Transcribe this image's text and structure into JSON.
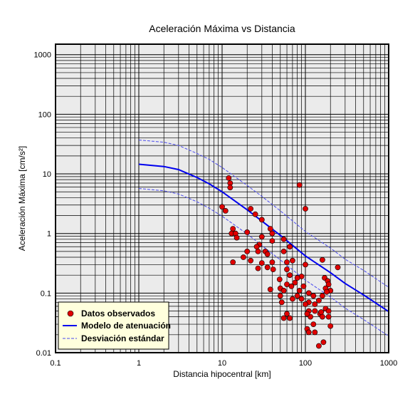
{
  "chart_data": {
    "type": "scatter",
    "title": "Aceleración Máxima vs Distancia",
    "xlabel": "Distancia hipocentral [km]",
    "ylabel": "Aceleración Máxima [cm/s²]",
    "xscale": "log",
    "yscale": "log",
    "xlim": [
      0.1,
      1000
    ],
    "ylim": [
      0.01,
      1500
    ],
    "x_ticks": [
      "0.1",
      "1",
      "10",
      "100",
      "1000"
    ],
    "y_ticks": [
      "0.01",
      "0.1",
      "1",
      "10",
      "100",
      "1000"
    ],
    "grid": true,
    "legend_position": "bottom-left",
    "colors": {
      "plot_bg": "#ebebeb",
      "observed": "#e00000",
      "model": "#0000ee",
      "stddev": "#4a4aee",
      "legend_bg": "#ffffdd"
    },
    "legend": [
      {
        "label": "Datos observados",
        "kind": "marker"
      },
      {
        "label": "Modelo de atenuación",
        "kind": "solid-line"
      },
      {
        "label": "Desviación estándar",
        "kind": "dashed-line"
      }
    ],
    "series": [
      {
        "name": "Modelo de atenuación",
        "x": [
          1,
          2,
          3,
          5,
          7,
          10,
          20,
          30,
          50,
          100,
          200,
          300,
          500,
          1000
        ],
        "y": [
          14.5,
          13.3,
          11.8,
          8.7,
          6.8,
          5.0,
          2.5,
          1.62,
          0.93,
          0.42,
          0.22,
          0.145,
          0.093,
          0.049
        ]
      },
      {
        "name": "Desviación estándar (superior)",
        "x": [
          1,
          2,
          3,
          5,
          7,
          10,
          20,
          30,
          50,
          100,
          200,
          300,
          500,
          1000
        ],
        "y": [
          37,
          34,
          30,
          22,
          17.5,
          12.8,
          6.4,
          4.2,
          2.4,
          1.08,
          0.57,
          0.37,
          0.24,
          0.125
        ]
      },
      {
        "name": "Desviación estándar (inferior)",
        "x": [
          1,
          2,
          3,
          5,
          7,
          10,
          20,
          30,
          50,
          100,
          200,
          300,
          500,
          1000
        ],
        "y": [
          5.7,
          5.2,
          4.6,
          3.4,
          2.65,
          1.95,
          0.98,
          0.63,
          0.36,
          0.165,
          0.086,
          0.056,
          0.036,
          0.019
        ]
      },
      {
        "name": "Datos observados",
        "points": [
          [
            12,
            8.5
          ],
          [
            12.5,
            7
          ],
          [
            12.5,
            5.9
          ],
          [
            85,
            6.5
          ],
          [
            100,
            2.6
          ],
          [
            10,
            2.8
          ],
          [
            11,
            2.4
          ],
          [
            22,
            2.6
          ],
          [
            25,
            2.1
          ],
          [
            30,
            1.7
          ],
          [
            13.5,
            1.2
          ],
          [
            13,
            1.0
          ],
          [
            14.5,
            1.0
          ],
          [
            15,
            0.85
          ],
          [
            20,
            1.05
          ],
          [
            38,
            1.2
          ],
          [
            40,
            1.0
          ],
          [
            40,
            0.75
          ],
          [
            30,
            0.88
          ],
          [
            65,
            0.6
          ],
          [
            55,
            0.8
          ],
          [
            28,
            0.65
          ],
          [
            26,
            0.6
          ],
          [
            27,
            0.5
          ],
          [
            33,
            0.5
          ],
          [
            20,
            0.5
          ],
          [
            35,
            0.45
          ],
          [
            55,
            0.5
          ],
          [
            18,
            0.4
          ],
          [
            22,
            0.35
          ],
          [
            13.5,
            0.33
          ],
          [
            30,
            0.32
          ],
          [
            40,
            0.33
          ],
          [
            60,
            0.33
          ],
          [
            70,
            0.35
          ],
          [
            100,
            0.3
          ],
          [
            160,
            0.36
          ],
          [
            245,
            0.27
          ],
          [
            27,
            0.26
          ],
          [
            35,
            0.27
          ],
          [
            41,
            0.25
          ],
          [
            60,
            0.25
          ],
          [
            65,
            0.2
          ],
          [
            90,
            0.19
          ],
          [
            49,
            0.17
          ],
          [
            75,
            0.15
          ],
          [
            80,
            0.18
          ],
          [
            170,
            0.18
          ],
          [
            60,
            0.14
          ],
          [
            68,
            0.13
          ],
          [
            50,
            0.12
          ],
          [
            38,
            0.115
          ],
          [
            55,
            0.11
          ],
          [
            85,
            0.11
          ],
          [
            95,
            0.13
          ],
          [
            185,
            0.16
          ],
          [
            190,
            0.14
          ],
          [
            175,
            0.12
          ],
          [
            200,
            0.11
          ],
          [
            180,
            0.105
          ],
          [
            50,
            0.09
          ],
          [
            80,
            0.09
          ],
          [
            90,
            0.08
          ],
          [
            70,
            0.08
          ],
          [
            110,
            0.1
          ],
          [
            125,
            0.09
          ],
          [
            160,
            0.09
          ],
          [
            145,
            0.075
          ],
          [
            110,
            0.07
          ],
          [
            52,
            0.07
          ],
          [
            100,
            0.065
          ],
          [
            130,
            0.065
          ],
          [
            175,
            0.055
          ],
          [
            110,
            0.05
          ],
          [
            130,
            0.05
          ],
          [
            150,
            0.045
          ],
          [
            155,
            0.048
          ],
          [
            190,
            0.05
          ],
          [
            60,
            0.045
          ],
          [
            55,
            0.038
          ],
          [
            65,
            0.038
          ],
          [
            115,
            0.04
          ],
          [
            105,
            0.045
          ],
          [
            160,
            0.04
          ],
          [
            190,
            0.04
          ],
          [
            105,
            0.025
          ],
          [
            110,
            0.022
          ],
          [
            130,
            0.022
          ],
          [
            200,
            0.028
          ],
          [
            125,
            0.03
          ],
          [
            165,
            0.015
          ],
          [
            145,
            0.013
          ]
        ]
      }
    ]
  }
}
